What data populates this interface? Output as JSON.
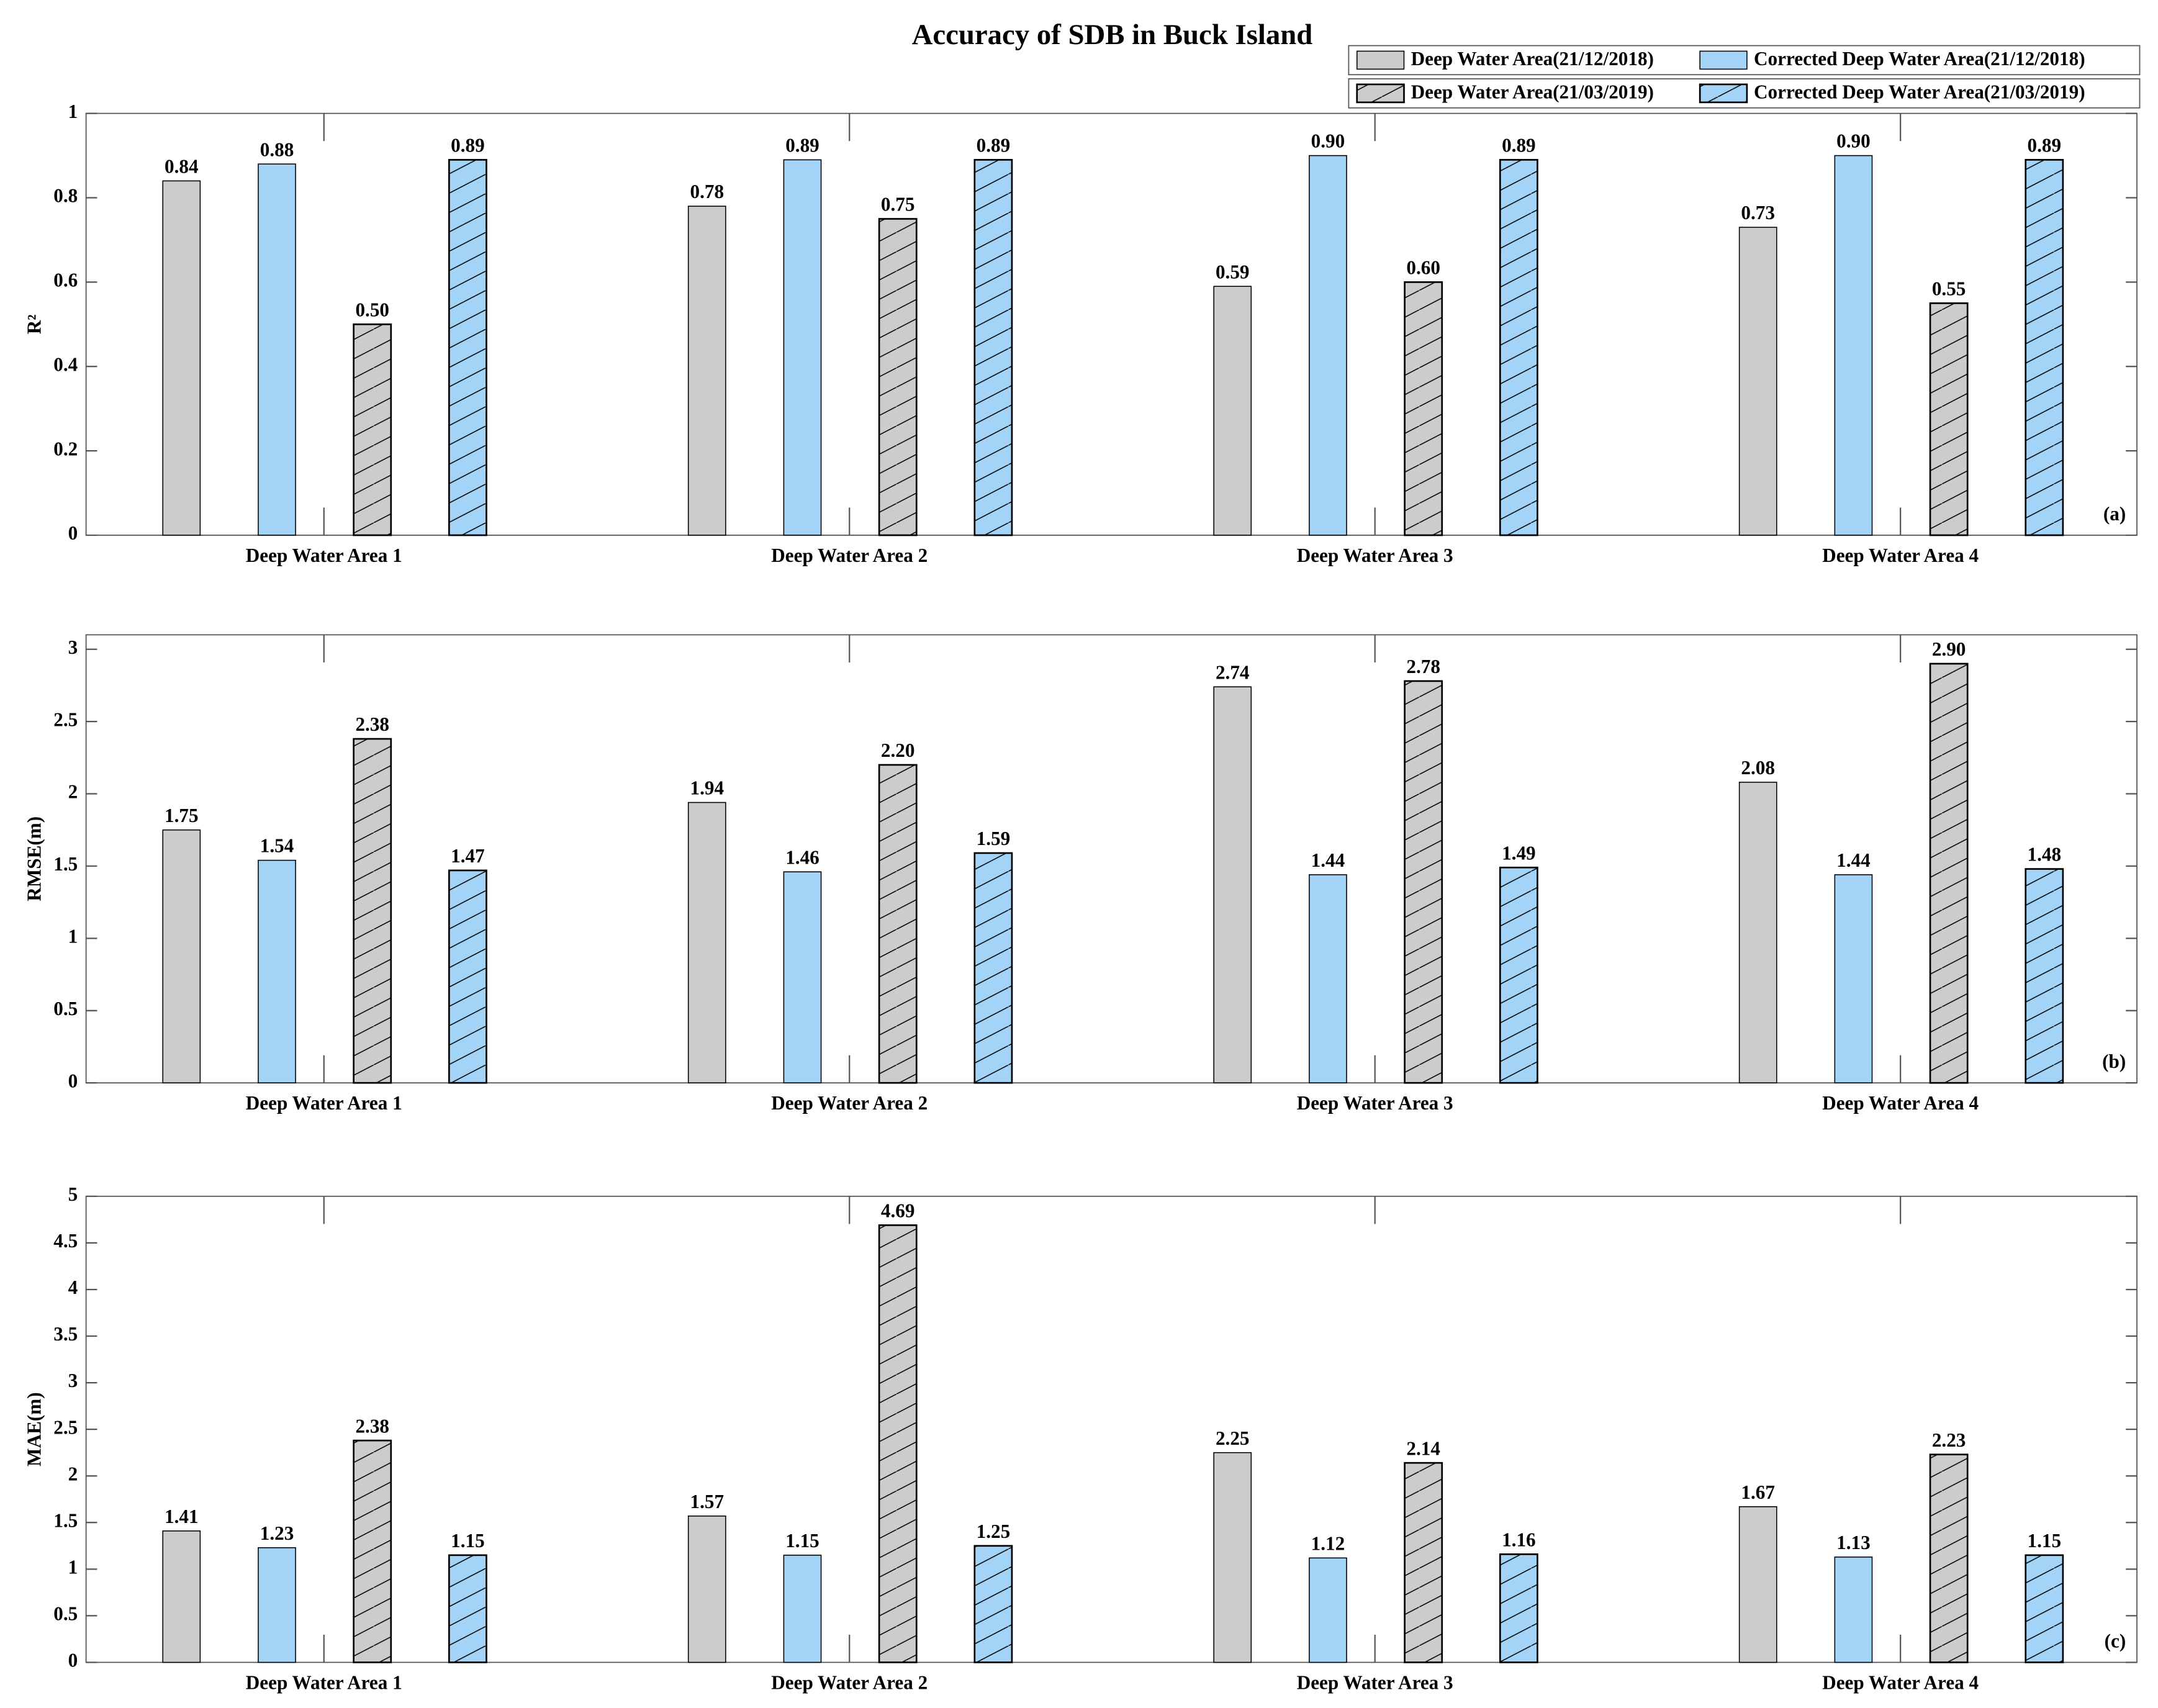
{
  "title": "Accuracy of SDB in Buck Island",
  "chart_data": [
    {
      "type": "bar",
      "ylabel": "R²",
      "annotation": "(a)",
      "categories": [
        "Deep Water Area 1",
        "Deep Water Area 2",
        "Deep Water Area 3",
        "Deep Water Area 4"
      ],
      "series": [
        {
          "name": "Deep Water Area(21/12/2018)",
          "color": "#cccccc",
          "hatch": false,
          "values": [
            0.84,
            0.78,
            0.59,
            0.73
          ],
          "value_labels": [
            "0.84",
            "0.78",
            "0.59",
            "0.73"
          ]
        },
        {
          "name": "Corrected Deep Water Area(21/12/2018)",
          "color": "#a3d4f7",
          "hatch": false,
          "values": [
            0.88,
            0.89,
            0.9,
            0.9
          ],
          "value_labels": [
            "0.88",
            "0.89",
            "0.90",
            "0.90"
          ]
        },
        {
          "name": "Deep Water Area(21/03/2019)",
          "color": "#cccccc",
          "hatch": true,
          "values": [
            0.5,
            0.75,
            0.6,
            0.55
          ],
          "value_labels": [
            "0.50",
            "0.75",
            "0.60",
            "0.55"
          ]
        },
        {
          "name": "Corrected Deep Water Area(21/03/2019)",
          "color": "#a3d4f7",
          "hatch": true,
          "values": [
            0.89,
            0.89,
            0.89,
            0.89
          ],
          "value_labels": [
            "0.89",
            "0.89",
            "0.89",
            "0.89"
          ]
        }
      ],
      "ylim": [
        0,
        1
      ],
      "yticks": [
        0,
        0.2,
        0.4,
        0.6,
        0.8,
        1
      ]
    },
    {
      "type": "bar",
      "ylabel": "RMSE(m)",
      "annotation": "(b)",
      "categories": [
        "Deep Water Area 1",
        "Deep Water Area 2",
        "Deep Water Area 3",
        "Deep Water Area 4"
      ],
      "series": [
        {
          "name": "Deep Water Area(21/12/2018)",
          "color": "#cccccc",
          "hatch": false,
          "values": [
            1.75,
            1.94,
            2.74,
            2.08
          ],
          "value_labels": [
            "1.75",
            "1.94",
            "2.74",
            "2.08"
          ]
        },
        {
          "name": "Corrected Deep Water Area(21/12/2018)",
          "color": "#a3d4f7",
          "hatch": false,
          "values": [
            1.54,
            1.46,
            1.44,
            1.44
          ],
          "value_labels": [
            "1.54",
            "1.46",
            "1.44",
            "1.44"
          ]
        },
        {
          "name": "Deep Water Area(21/03/2019)",
          "color": "#cccccc",
          "hatch": true,
          "values": [
            2.38,
            2.2,
            2.78,
            2.9
          ],
          "value_labels": [
            "2.38",
            "2.20",
            "2.78",
            "2.90"
          ]
        },
        {
          "name": "Corrected Deep Water Area(21/03/2019)",
          "color": "#a3d4f7",
          "hatch": true,
          "values": [
            1.47,
            1.59,
            1.49,
            1.48
          ],
          "value_labels": [
            "1.47",
            "1.59",
            "1.49",
            "1.48"
          ]
        }
      ],
      "ylim": [
        0,
        3.1
      ],
      "yticks": [
        0,
        0.5,
        1,
        1.5,
        2,
        2.5,
        3
      ]
    },
    {
      "type": "bar",
      "ylabel": "MAE(m)",
      "annotation": "(c)",
      "categories": [
        "Deep Water Area 1",
        "Deep Water Area 2",
        "Deep Water Area 3",
        "Deep Water Area 4"
      ],
      "series": [
        {
          "name": "Deep Water Area(21/12/2018)",
          "color": "#cccccc",
          "hatch": false,
          "values": [
            1.41,
            1.57,
            2.25,
            1.67
          ],
          "value_labels": [
            "1.41",
            "1.57",
            "2.25",
            "1.67"
          ]
        },
        {
          "name": "Corrected Deep Water Area(21/12/2018)",
          "color": "#a3d4f7",
          "hatch": false,
          "values": [
            1.23,
            1.15,
            1.12,
            1.13
          ],
          "value_labels": [
            "1.23",
            "1.15",
            "1.12",
            "1.13"
          ]
        },
        {
          "name": "Deep Water Area(21/03/2019)",
          "color": "#cccccc",
          "hatch": true,
          "values": [
            2.38,
            4.69,
            2.14,
            2.23
          ],
          "value_labels": [
            "2.38",
            "4.69",
            "2.14",
            "2.23"
          ]
        },
        {
          "name": "Corrected Deep Water Area(21/03/2019)",
          "color": "#a3d4f7",
          "hatch": true,
          "values": [
            1.15,
            1.25,
            1.16,
            1.15
          ],
          "value_labels": [
            "1.15",
            "1.25",
            "1.16",
            "1.15"
          ]
        }
      ],
      "ylim": [
        0,
        5
      ],
      "yticks": [
        0,
        0.5,
        1,
        1.5,
        2,
        2.5,
        3,
        3.5,
        4,
        4.5,
        5
      ]
    }
  ]
}
